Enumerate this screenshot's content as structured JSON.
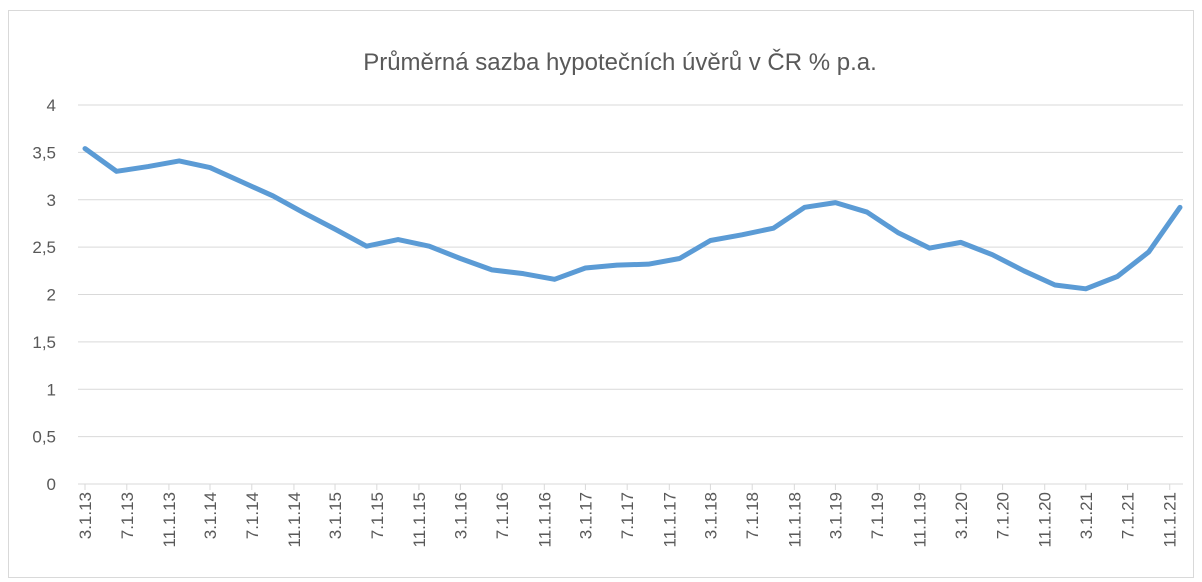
{
  "chart_data": {
    "type": "line",
    "title": "Průměrná sazba hypotečních úvěrů v ČR % p.a.",
    "x": [
      "2013-03-01",
      "2013-06-01",
      "2013-09-01",
      "2013-12-01",
      "2014-03-01",
      "2014-06-01",
      "2014-09-01",
      "2014-12-01",
      "2015-03-01",
      "2015-06-01",
      "2015-09-01",
      "2015-12-01",
      "2016-03-01",
      "2016-06-01",
      "2016-09-01",
      "2016-12-01",
      "2017-03-01",
      "2017-06-01",
      "2017-09-01",
      "2017-12-01",
      "2018-03-01",
      "2018-06-01",
      "2018-09-01",
      "2018-12-01",
      "2019-03-01",
      "2019-06-01",
      "2019-09-01",
      "2019-12-01",
      "2020-03-01",
      "2020-06-01",
      "2020-09-01",
      "2020-12-01",
      "2021-03-01",
      "2021-06-01",
      "2021-09-01",
      "2021-12-01"
    ],
    "values": [
      3.54,
      3.3,
      3.35,
      3.41,
      3.34,
      3.19,
      3.04,
      2.86,
      2.69,
      2.51,
      2.58,
      2.51,
      2.38,
      2.26,
      2.22,
      2.16,
      2.28,
      2.31,
      2.32,
      2.38,
      2.57,
      2.63,
      2.7,
      2.92,
      2.97,
      2.87,
      2.65,
      2.49,
      2.55,
      2.42,
      2.25,
      2.1,
      2.06,
      2.19,
      2.45,
      2.92
    ],
    "color": "#5b9bd5",
    "xlim": [
      "2013-03-01",
      "2021-12-01"
    ],
    "xticks": [
      {
        "value": "2013-03-01",
        "label": "3.1.13"
      },
      {
        "value": "2013-07-01",
        "label": "7.1.13"
      },
      {
        "value": "2013-11-01",
        "label": "11.1.13"
      },
      {
        "value": "2014-03-01",
        "label": "3.1.14"
      },
      {
        "value": "2014-07-01",
        "label": "7.1.14"
      },
      {
        "value": "2014-11-01",
        "label": "11.1.14"
      },
      {
        "value": "2015-03-01",
        "label": "3.1.15"
      },
      {
        "value": "2015-07-01",
        "label": "7.1.15"
      },
      {
        "value": "2015-11-01",
        "label": "11.1.15"
      },
      {
        "value": "2016-03-01",
        "label": "3.1.16"
      },
      {
        "value": "2016-07-01",
        "label": "7.1.16"
      },
      {
        "value": "2016-11-01",
        "label": "11.1.16"
      },
      {
        "value": "2017-03-01",
        "label": "3.1.17"
      },
      {
        "value": "2017-07-01",
        "label": "7.1.17"
      },
      {
        "value": "2017-11-01",
        "label": "11.1.17"
      },
      {
        "value": "2018-03-01",
        "label": "3.1.18"
      },
      {
        "value": "2018-07-01",
        "label": "7.1.18"
      },
      {
        "value": "2018-11-01",
        "label": "11.1.18"
      },
      {
        "value": "2019-03-01",
        "label": "3.1.19"
      },
      {
        "value": "2019-07-01",
        "label": "7.1.19"
      },
      {
        "value": "2019-11-01",
        "label": "11.1.19"
      },
      {
        "value": "2020-03-01",
        "label": "3.1.20"
      },
      {
        "value": "2020-07-01",
        "label": "7.1.20"
      },
      {
        "value": "2020-11-01",
        "label": "11.1.20"
      },
      {
        "value": "2021-03-01",
        "label": "3.1.21"
      },
      {
        "value": "2021-07-01",
        "label": "7.1.21"
      },
      {
        "value": "2021-11-01",
        "label": "11.1.21"
      }
    ],
    "ylim": [
      0,
      4
    ],
    "yticks": [
      0,
      {
        "value": 0.5,
        "label": "0,5"
      },
      1,
      {
        "value": 1.5,
        "label": "1,5"
      },
      2,
      {
        "value": 2.5,
        "label": "2,5"
      },
      3,
      {
        "value": 3.5,
        "label": "3,5"
      },
      4
    ],
    "grid": true
  }
}
